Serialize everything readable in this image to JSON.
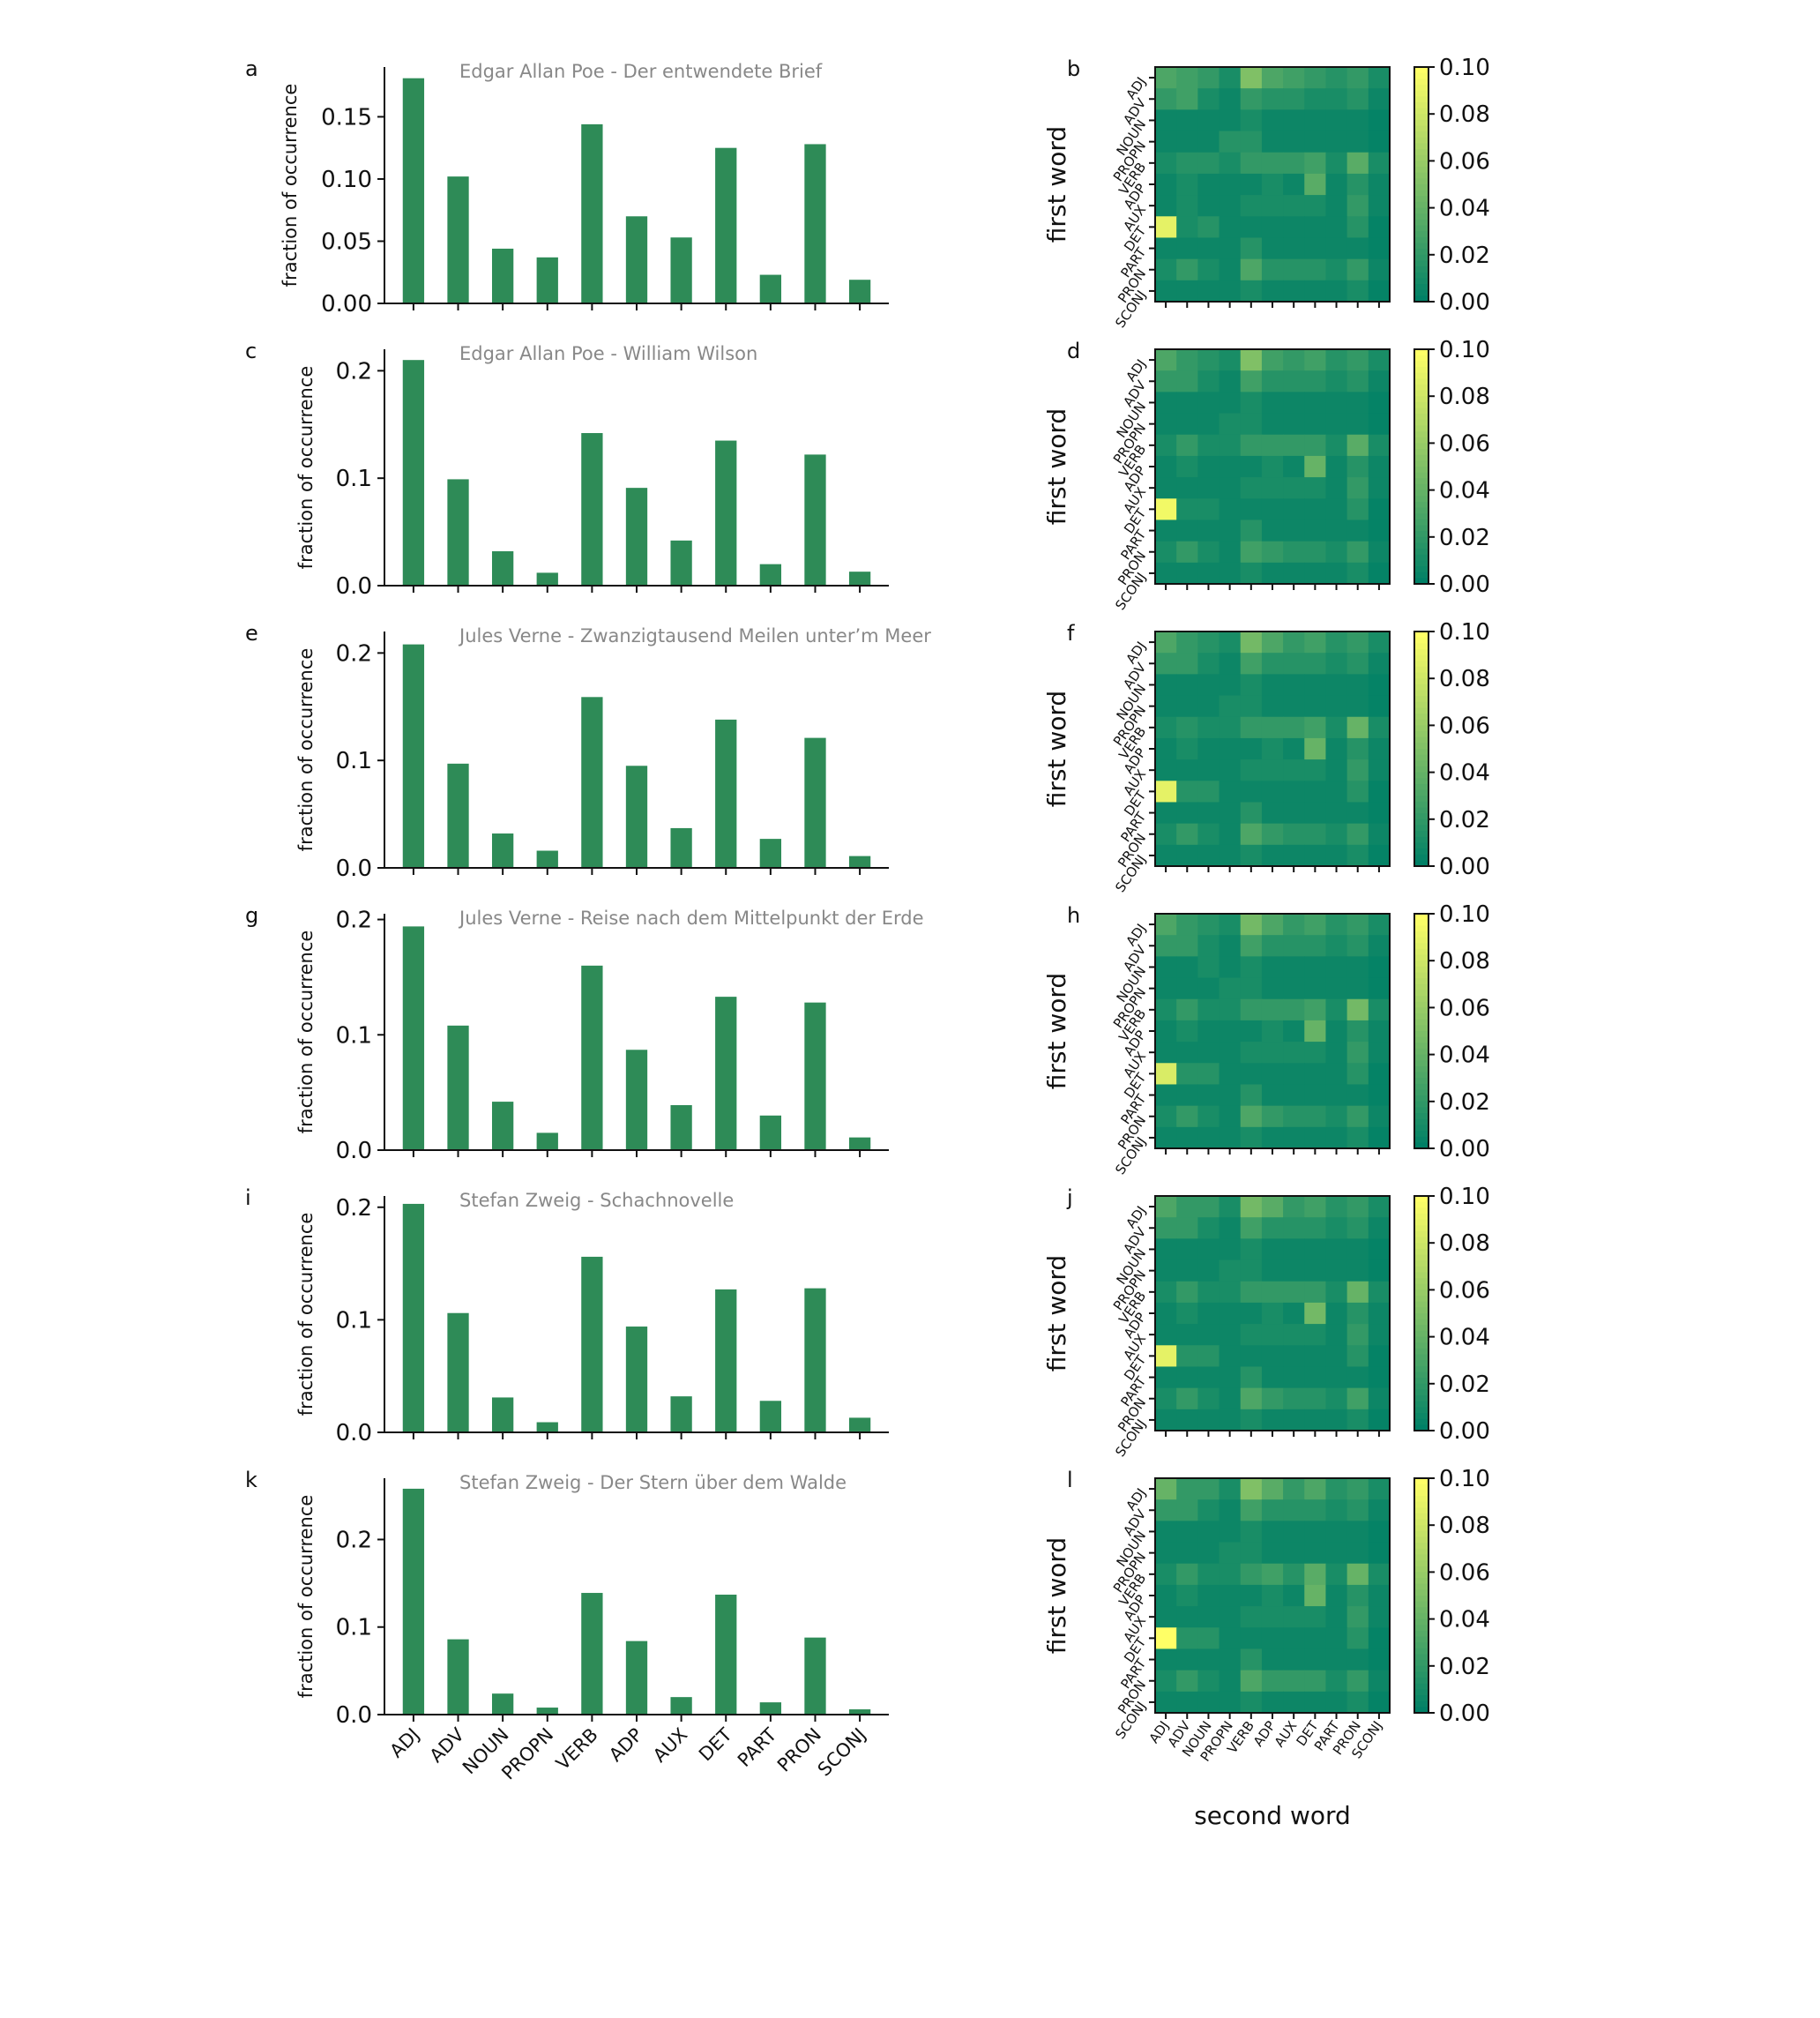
{
  "colors": {
    "bar": "#2e8b57",
    "colormap": [
      "#008066",
      "#ffff66"
    ],
    "title": "#888888"
  },
  "categories": [
    "ADJ",
    "ADV",
    "NOUN",
    "PROPN",
    "VERB",
    "ADP",
    "AUX",
    "DET",
    "PART",
    "PRON",
    "SCONJ"
  ],
  "shared_labels": {
    "bar_ylabel": "fraction of occurrence",
    "heatmap_ylabel": "first word",
    "heatmap_xlabel": "second word"
  },
  "chart_data": [
    {
      "type": "bar",
      "panel": "a",
      "title": "Edgar Allan Poe - Der entwendete Brief",
      "ylim": [
        0,
        0.19
      ],
      "yticks": [
        "0.00",
        "0.05",
        "0.10",
        "0.15"
      ],
      "ytick_values": [
        0,
        0.05,
        0.1,
        0.15
      ],
      "values": [
        0.181,
        0.102,
        0.044,
        0.037,
        0.144,
        0.07,
        0.053,
        0.125,
        0.023,
        0.128,
        0.019
      ]
    },
    {
      "type": "heatmap",
      "panel": "b",
      "vmin": 0,
      "vmax": 0.1,
      "colorbar_ticks": [
        "0.00",
        "0.02",
        "0.04",
        "0.06",
        "0.08",
        "0.10"
      ],
      "matrix": [
        [
          0.03,
          0.025,
          0.02,
          0.01,
          0.05,
          0.03,
          0.025,
          0.02,
          0.015,
          0.02,
          0.01
        ],
        [
          0.02,
          0.025,
          0.01,
          0.005,
          0.02,
          0.015,
          0.015,
          0.01,
          0.01,
          0.015,
          0.005
        ],
        [
          0.005,
          0.005,
          0.005,
          0.005,
          0.01,
          0.005,
          0.005,
          0.005,
          0.005,
          0.005,
          0.002
        ],
        [
          0.005,
          0.005,
          0.005,
          0.015,
          0.015,
          0.005,
          0.005,
          0.005,
          0.005,
          0.005,
          0.002
        ],
        [
          0.01,
          0.015,
          0.015,
          0.01,
          0.02,
          0.02,
          0.02,
          0.025,
          0.01,
          0.035,
          0.01
        ],
        [
          0.005,
          0.01,
          0.005,
          0.005,
          0.005,
          0.01,
          0.005,
          0.035,
          0.005,
          0.015,
          0.005
        ],
        [
          0.005,
          0.01,
          0.005,
          0.005,
          0.01,
          0.01,
          0.01,
          0.01,
          0.005,
          0.02,
          0.005
        ],
        [
          0.09,
          0.01,
          0.015,
          0.005,
          0.005,
          0.005,
          0.005,
          0.005,
          0.005,
          0.015,
          0.002
        ],
        [
          0.005,
          0.005,
          0.005,
          0.005,
          0.015,
          0.005,
          0.005,
          0.005,
          0.005,
          0.005,
          0.002
        ],
        [
          0.01,
          0.02,
          0.01,
          0.005,
          0.03,
          0.015,
          0.015,
          0.015,
          0.01,
          0.02,
          0.005
        ],
        [
          0.005,
          0.005,
          0.005,
          0.005,
          0.01,
          0.005,
          0.005,
          0.005,
          0.005,
          0.01,
          0.002
        ]
      ]
    },
    {
      "type": "bar",
      "panel": "c",
      "title": "Edgar Allan Poe - William Wilson",
      "ylim": [
        0,
        0.22
      ],
      "yticks": [
        "0.0",
        "0.1",
        "0.2"
      ],
      "ytick_values": [
        0,
        0.1,
        0.2
      ],
      "values": [
        0.21,
        0.099,
        0.032,
        0.012,
        0.142,
        0.091,
        0.042,
        0.135,
        0.02,
        0.122,
        0.013
      ]
    },
    {
      "type": "heatmap",
      "panel": "d",
      "vmin": 0,
      "vmax": 0.1,
      "colorbar_ticks": [
        "0.00",
        "0.02",
        "0.04",
        "0.06",
        "0.08",
        "0.10"
      ],
      "matrix": [
        [
          0.03,
          0.02,
          0.015,
          0.01,
          0.05,
          0.025,
          0.02,
          0.025,
          0.015,
          0.02,
          0.01
        ],
        [
          0.02,
          0.02,
          0.01,
          0.005,
          0.025,
          0.015,
          0.015,
          0.015,
          0.01,
          0.015,
          0.005
        ],
        [
          0.005,
          0.005,
          0.005,
          0.005,
          0.01,
          0.005,
          0.005,
          0.005,
          0.005,
          0.005,
          0.002
        ],
        [
          0.005,
          0.005,
          0.005,
          0.01,
          0.01,
          0.005,
          0.005,
          0.005,
          0.005,
          0.005,
          0.002
        ],
        [
          0.01,
          0.02,
          0.01,
          0.01,
          0.02,
          0.02,
          0.02,
          0.02,
          0.01,
          0.035,
          0.01
        ],
        [
          0.005,
          0.01,
          0.005,
          0.005,
          0.005,
          0.01,
          0.005,
          0.04,
          0.005,
          0.015,
          0.005
        ],
        [
          0.005,
          0.005,
          0.005,
          0.005,
          0.01,
          0.01,
          0.01,
          0.01,
          0.005,
          0.02,
          0.005
        ],
        [
          0.095,
          0.01,
          0.01,
          0.005,
          0.005,
          0.005,
          0.005,
          0.005,
          0.005,
          0.015,
          0.002
        ],
        [
          0.005,
          0.005,
          0.005,
          0.005,
          0.015,
          0.005,
          0.005,
          0.005,
          0.005,
          0.005,
          0.002
        ],
        [
          0.01,
          0.02,
          0.01,
          0.005,
          0.025,
          0.02,
          0.015,
          0.015,
          0.01,
          0.02,
          0.005
        ],
        [
          0.005,
          0.005,
          0.005,
          0.005,
          0.01,
          0.005,
          0.005,
          0.005,
          0.005,
          0.01,
          0.002
        ]
      ]
    },
    {
      "type": "bar",
      "panel": "e",
      "title": "Jules Verne - Zwanzigtausend Meilen unter’m Meer",
      "ylim": [
        0,
        0.22
      ],
      "yticks": [
        "0.0",
        "0.1",
        "0.2"
      ],
      "ytick_values": [
        0,
        0.1,
        0.2
      ],
      "values": [
        0.208,
        0.097,
        0.032,
        0.016,
        0.159,
        0.095,
        0.037,
        0.138,
        0.027,
        0.121,
        0.011
      ]
    },
    {
      "type": "heatmap",
      "panel": "f",
      "vmin": 0,
      "vmax": 0.1,
      "colorbar_ticks": [
        "0.00",
        "0.02",
        "0.04",
        "0.06",
        "0.08",
        "0.10"
      ],
      "matrix": [
        [
          0.03,
          0.02,
          0.015,
          0.01,
          0.045,
          0.03,
          0.02,
          0.025,
          0.015,
          0.02,
          0.01
        ],
        [
          0.02,
          0.02,
          0.01,
          0.005,
          0.025,
          0.015,
          0.015,
          0.015,
          0.01,
          0.015,
          0.005
        ],
        [
          0.005,
          0.005,
          0.005,
          0.005,
          0.01,
          0.005,
          0.005,
          0.005,
          0.005,
          0.005,
          0.002
        ],
        [
          0.005,
          0.005,
          0.005,
          0.01,
          0.01,
          0.005,
          0.005,
          0.005,
          0.005,
          0.005,
          0.002
        ],
        [
          0.01,
          0.015,
          0.01,
          0.01,
          0.02,
          0.02,
          0.02,
          0.025,
          0.01,
          0.04,
          0.01
        ],
        [
          0.005,
          0.01,
          0.005,
          0.005,
          0.005,
          0.01,
          0.005,
          0.04,
          0.005,
          0.015,
          0.005
        ],
        [
          0.005,
          0.005,
          0.005,
          0.005,
          0.01,
          0.01,
          0.01,
          0.01,
          0.005,
          0.02,
          0.005
        ],
        [
          0.09,
          0.015,
          0.015,
          0.005,
          0.005,
          0.005,
          0.005,
          0.005,
          0.005,
          0.015,
          0.002
        ],
        [
          0.005,
          0.005,
          0.005,
          0.005,
          0.015,
          0.005,
          0.005,
          0.005,
          0.005,
          0.005,
          0.002
        ],
        [
          0.01,
          0.02,
          0.01,
          0.005,
          0.03,
          0.02,
          0.015,
          0.015,
          0.01,
          0.02,
          0.005
        ],
        [
          0.005,
          0.005,
          0.005,
          0.005,
          0.01,
          0.005,
          0.005,
          0.005,
          0.005,
          0.01,
          0.002
        ]
      ]
    },
    {
      "type": "bar",
      "panel": "g",
      "title": "Jules Verne - Reise nach dem Mittelpunkt der Erde",
      "ylim": [
        0,
        0.205
      ],
      "yticks": [
        "0.0",
        "0.1",
        "0.2"
      ],
      "ytick_values": [
        0,
        0.1,
        0.2
      ],
      "values": [
        0.194,
        0.108,
        0.042,
        0.015,
        0.16,
        0.087,
        0.039,
        0.133,
        0.03,
        0.128,
        0.011
      ]
    },
    {
      "type": "heatmap",
      "panel": "h",
      "vmin": 0,
      "vmax": 0.1,
      "colorbar_ticks": [
        "0.00",
        "0.02",
        "0.04",
        "0.06",
        "0.08",
        "0.10"
      ],
      "matrix": [
        [
          0.03,
          0.02,
          0.015,
          0.01,
          0.045,
          0.03,
          0.02,
          0.025,
          0.015,
          0.02,
          0.01
        ],
        [
          0.02,
          0.02,
          0.01,
          0.005,
          0.025,
          0.015,
          0.015,
          0.015,
          0.01,
          0.015,
          0.005
        ],
        [
          0.005,
          0.005,
          0.01,
          0.005,
          0.01,
          0.005,
          0.005,
          0.005,
          0.005,
          0.005,
          0.002
        ],
        [
          0.005,
          0.005,
          0.005,
          0.01,
          0.01,
          0.005,
          0.005,
          0.005,
          0.005,
          0.005,
          0.002
        ],
        [
          0.01,
          0.02,
          0.01,
          0.01,
          0.02,
          0.02,
          0.02,
          0.025,
          0.01,
          0.045,
          0.01
        ],
        [
          0.005,
          0.01,
          0.005,
          0.005,
          0.005,
          0.01,
          0.005,
          0.04,
          0.005,
          0.015,
          0.005
        ],
        [
          0.005,
          0.005,
          0.005,
          0.005,
          0.01,
          0.01,
          0.01,
          0.01,
          0.005,
          0.02,
          0.005
        ],
        [
          0.085,
          0.015,
          0.015,
          0.005,
          0.005,
          0.005,
          0.005,
          0.005,
          0.005,
          0.015,
          0.002
        ],
        [
          0.005,
          0.005,
          0.005,
          0.005,
          0.015,
          0.005,
          0.005,
          0.005,
          0.005,
          0.005,
          0.002
        ],
        [
          0.01,
          0.02,
          0.01,
          0.005,
          0.03,
          0.02,
          0.015,
          0.015,
          0.01,
          0.02,
          0.005
        ],
        [
          0.005,
          0.005,
          0.005,
          0.005,
          0.01,
          0.005,
          0.005,
          0.005,
          0.005,
          0.01,
          0.002
        ]
      ]
    },
    {
      "type": "bar",
      "panel": "i",
      "title": "Stefan Zweig - Schachnovelle",
      "ylim": [
        0,
        0.21
      ],
      "yticks": [
        "0.0",
        "0.1",
        "0.2"
      ],
      "ytick_values": [
        0,
        0.1,
        0.2
      ],
      "values": [
        0.203,
        0.106,
        0.031,
        0.009,
        0.156,
        0.094,
        0.032,
        0.127,
        0.028,
        0.128,
        0.013
      ]
    },
    {
      "type": "heatmap",
      "panel": "j",
      "vmin": 0,
      "vmax": 0.1,
      "colorbar_ticks": [
        "0.00",
        "0.02",
        "0.04",
        "0.06",
        "0.08",
        "0.10"
      ],
      "matrix": [
        [
          0.03,
          0.02,
          0.02,
          0.01,
          0.045,
          0.035,
          0.02,
          0.025,
          0.015,
          0.02,
          0.01
        ],
        [
          0.02,
          0.02,
          0.01,
          0.005,
          0.025,
          0.015,
          0.015,
          0.015,
          0.01,
          0.015,
          0.005
        ],
        [
          0.005,
          0.005,
          0.005,
          0.005,
          0.01,
          0.005,
          0.005,
          0.005,
          0.005,
          0.005,
          0.002
        ],
        [
          0.005,
          0.005,
          0.005,
          0.01,
          0.01,
          0.005,
          0.005,
          0.005,
          0.005,
          0.005,
          0.002
        ],
        [
          0.01,
          0.02,
          0.01,
          0.01,
          0.02,
          0.02,
          0.02,
          0.02,
          0.01,
          0.04,
          0.01
        ],
        [
          0.005,
          0.01,
          0.005,
          0.005,
          0.005,
          0.01,
          0.005,
          0.045,
          0.005,
          0.015,
          0.005
        ],
        [
          0.005,
          0.005,
          0.005,
          0.005,
          0.01,
          0.01,
          0.01,
          0.01,
          0.005,
          0.02,
          0.005
        ],
        [
          0.09,
          0.015,
          0.015,
          0.005,
          0.005,
          0.005,
          0.005,
          0.005,
          0.005,
          0.015,
          0.002
        ],
        [
          0.005,
          0.005,
          0.005,
          0.005,
          0.015,
          0.005,
          0.005,
          0.005,
          0.005,
          0.005,
          0.002
        ],
        [
          0.01,
          0.02,
          0.01,
          0.005,
          0.03,
          0.02,
          0.015,
          0.015,
          0.01,
          0.025,
          0.005
        ],
        [
          0.005,
          0.005,
          0.005,
          0.005,
          0.01,
          0.005,
          0.005,
          0.005,
          0.005,
          0.01,
          0.002
        ]
      ]
    },
    {
      "type": "bar",
      "panel": "k",
      "title": "Stefan Zweig - Der Stern über dem Walde",
      "ylim": [
        0,
        0.27
      ],
      "yticks": [
        "0.0",
        "0.1",
        "0.2"
      ],
      "ytick_values": [
        0,
        0.1,
        0.2
      ],
      "values": [
        0.258,
        0.086,
        0.024,
        0.008,
        0.139,
        0.084,
        0.02,
        0.137,
        0.014,
        0.088,
        0.006
      ]
    },
    {
      "type": "heatmap",
      "panel": "l",
      "vmin": 0,
      "vmax": 0.1,
      "colorbar_ticks": [
        "0.00",
        "0.02",
        "0.04",
        "0.06",
        "0.08",
        "0.10"
      ],
      "matrix": [
        [
          0.04,
          0.02,
          0.02,
          0.01,
          0.05,
          0.035,
          0.02,
          0.03,
          0.015,
          0.02,
          0.01
        ],
        [
          0.02,
          0.02,
          0.01,
          0.005,
          0.025,
          0.015,
          0.015,
          0.015,
          0.01,
          0.015,
          0.005
        ],
        [
          0.005,
          0.005,
          0.005,
          0.005,
          0.01,
          0.005,
          0.005,
          0.005,
          0.005,
          0.005,
          0.002
        ],
        [
          0.005,
          0.005,
          0.005,
          0.01,
          0.01,
          0.005,
          0.005,
          0.005,
          0.005,
          0.005,
          0.002
        ],
        [
          0.01,
          0.02,
          0.01,
          0.01,
          0.02,
          0.025,
          0.015,
          0.035,
          0.01,
          0.04,
          0.01
        ],
        [
          0.005,
          0.01,
          0.005,
          0.005,
          0.005,
          0.01,
          0.005,
          0.04,
          0.005,
          0.015,
          0.005
        ],
        [
          0.005,
          0.005,
          0.005,
          0.005,
          0.01,
          0.01,
          0.01,
          0.01,
          0.005,
          0.02,
          0.005
        ],
        [
          0.1,
          0.015,
          0.015,
          0.005,
          0.005,
          0.005,
          0.005,
          0.005,
          0.005,
          0.015,
          0.002
        ],
        [
          0.005,
          0.005,
          0.005,
          0.005,
          0.015,
          0.005,
          0.005,
          0.005,
          0.005,
          0.005,
          0.002
        ],
        [
          0.01,
          0.02,
          0.01,
          0.005,
          0.03,
          0.02,
          0.02,
          0.02,
          0.01,
          0.02,
          0.005
        ],
        [
          0.005,
          0.005,
          0.005,
          0.005,
          0.01,
          0.005,
          0.005,
          0.005,
          0.005,
          0.01,
          0.002
        ]
      ]
    }
  ]
}
